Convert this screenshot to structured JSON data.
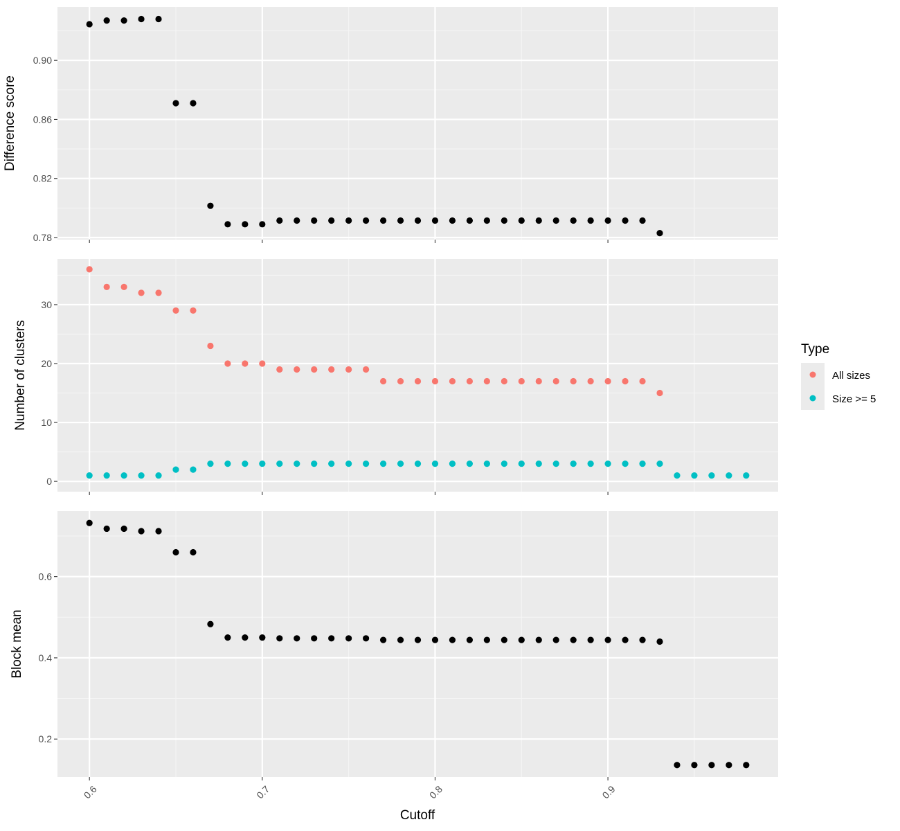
{
  "colors": {
    "panel_bg": "#ebebeb",
    "grid_major": "#ffffff",
    "grid_minor": "#f5f5f5",
    "tick": "#333333",
    "black_point": "#000000",
    "all_sizes": "#f8766d",
    "size_ge5": "#00bfc4",
    "legend_key_bg": "#ebebeb"
  },
  "chart_data": {
    "type": "scatter",
    "layout": "faceted-vertical",
    "xlabel": "Cutoff",
    "x_ticks": [
      0.6,
      0.7,
      0.8,
      0.9
    ],
    "x_tick_labels": [
      "0.6",
      "0.7",
      "0.8",
      "0.9"
    ],
    "xlim": [
      0.5815,
      0.9985
    ],
    "legend": {
      "title": "Type",
      "position": "right",
      "entries": [
        {
          "label": "All sizes",
          "color": "#f8766d"
        },
        {
          "label": "Size >= 5",
          "color": "#00bfc4"
        }
      ]
    },
    "panels": [
      {
        "ylabel": "Difference score",
        "ylim": [
          0.7786,
          0.9362
        ],
        "y_ticks": [
          0.78,
          0.82,
          0.86,
          0.9
        ],
        "y_tick_labels": [
          "0.78",
          "0.82",
          "0.86",
          "0.90"
        ],
        "y_minor": [
          0.8,
          0.84,
          0.88,
          0.92
        ],
        "series": [
          {
            "color_key": "black_point",
            "x": [
              0.6,
              0.61,
              0.62,
              0.63,
              0.64,
              0.65,
              0.66,
              0.67,
              0.68,
              0.69,
              0.7,
              0.71,
              0.72,
              0.73,
              0.74,
              0.75,
              0.76,
              0.77,
              0.78,
              0.79,
              0.8,
              0.81,
              0.82,
              0.83,
              0.84,
              0.85,
              0.86,
              0.87,
              0.88,
              0.89,
              0.9,
              0.91,
              0.92,
              0.93
            ],
            "y": [
              0.9245,
              0.927,
              0.927,
              0.928,
              0.928,
              0.871,
              0.871,
              0.8015,
              0.789,
              0.789,
              0.789,
              0.7915,
              0.7915,
              0.7915,
              0.7915,
              0.7915,
              0.7915,
              0.7915,
              0.7915,
              0.7915,
              0.7915,
              0.7915,
              0.7915,
              0.7915,
              0.7915,
              0.7915,
              0.7915,
              0.7915,
              0.7915,
              0.7915,
              0.7915,
              0.7915,
              0.7915,
              0.783
            ]
          }
        ]
      },
      {
        "ylabel": "Number of clusters",
        "ylim": [
          -1.75,
          37.75
        ],
        "y_ticks": [
          0,
          10,
          20,
          30
        ],
        "y_tick_labels": [
          "0",
          "10",
          "20",
          "30"
        ],
        "y_minor": [
          5,
          15,
          25,
          35
        ],
        "series": [
          {
            "name": "All sizes",
            "color_key": "all_sizes",
            "x": [
              0.6,
              0.61,
              0.62,
              0.63,
              0.64,
              0.65,
              0.66,
              0.67,
              0.68,
              0.69,
              0.7,
              0.71,
              0.72,
              0.73,
              0.74,
              0.75,
              0.76,
              0.77,
              0.78,
              0.79,
              0.8,
              0.81,
              0.82,
              0.83,
              0.84,
              0.85,
              0.86,
              0.87,
              0.88,
              0.89,
              0.9,
              0.91,
              0.92,
              0.93
            ],
            "y": [
              36,
              33,
              33,
              32,
              32,
              29,
              29,
              23,
              20,
              20,
              20,
              19,
              19,
              19,
              19,
              19,
              19,
              17,
              17,
              17,
              17,
              17,
              17,
              17,
              17,
              17,
              17,
              17,
              17,
              17,
              17,
              17,
              17,
              15
            ]
          },
          {
            "name": "Size >= 5",
            "color_key": "size_ge5",
            "x": [
              0.6,
              0.61,
              0.62,
              0.63,
              0.64,
              0.65,
              0.66,
              0.67,
              0.68,
              0.69,
              0.7,
              0.71,
              0.72,
              0.73,
              0.74,
              0.75,
              0.76,
              0.77,
              0.78,
              0.79,
              0.8,
              0.81,
              0.82,
              0.83,
              0.84,
              0.85,
              0.86,
              0.87,
              0.88,
              0.89,
              0.9,
              0.91,
              0.92,
              0.93,
              0.94,
              0.95,
              0.96,
              0.97,
              0.98
            ],
            "y": [
              1,
              1,
              1,
              1,
              1,
              2,
              2,
              3,
              3,
              3,
              3,
              3,
              3,
              3,
              3,
              3,
              3,
              3,
              3,
              3,
              3,
              3,
              3,
              3,
              3,
              3,
              3,
              3,
              3,
              3,
              3,
              3,
              3,
              3,
              1,
              1,
              1,
              1,
              1
            ]
          }
        ]
      },
      {
        "ylabel": "Block mean",
        "ylim": [
          0.1066,
          0.7614
        ],
        "y_ticks": [
          0.2,
          0.4,
          0.6
        ],
        "y_tick_labels": [
          "0.2",
          "0.4",
          "0.6"
        ],
        "y_minor": [
          0.3,
          0.5,
          0.7
        ],
        "series": [
          {
            "color_key": "black_point",
            "x": [
              0.6,
              0.61,
              0.62,
              0.63,
              0.64,
              0.65,
              0.66,
              0.67,
              0.68,
              0.69,
              0.7,
              0.71,
              0.72,
              0.73,
              0.74,
              0.75,
              0.76,
              0.77,
              0.78,
              0.79,
              0.8,
              0.81,
              0.82,
              0.83,
              0.84,
              0.85,
              0.86,
              0.87,
              0.88,
              0.89,
              0.9,
              0.91,
              0.92,
              0.93,
              0.94,
              0.95,
              0.96,
              0.97,
              0.98
            ],
            "y": [
              0.732,
              0.718,
              0.718,
              0.712,
              0.712,
              0.66,
              0.66,
              0.483,
              0.45,
              0.45,
              0.45,
              0.448,
              0.448,
              0.448,
              0.448,
              0.448,
              0.448,
              0.444,
              0.444,
              0.444,
              0.444,
              0.444,
              0.444,
              0.444,
              0.444,
              0.444,
              0.444,
              0.444,
              0.444,
              0.444,
              0.444,
              0.444,
              0.444,
              0.44,
              0.136,
              0.136,
              0.136,
              0.136,
              0.136
            ]
          }
        ]
      }
    ]
  }
}
